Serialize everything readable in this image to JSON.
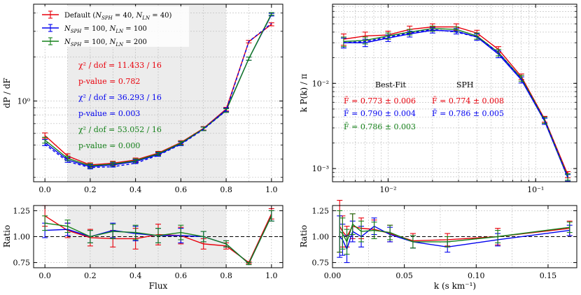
{
  "colors": {
    "red": "#e8000b",
    "blue": "#0000ee",
    "green": "#15801a",
    "shade": "#ececec"
  },
  "chart_data": [
    {
      "id": "flux-pdf",
      "type": "line",
      "xlabel": "",
      "ylabel": "dP / dF",
      "yscale": "log",
      "ylim": [
        0.28,
        4.6
      ],
      "xlim": [
        -0.05,
        1.05
      ],
      "xticks": [
        0.0,
        0.2,
        0.4,
        0.6,
        0.8,
        1.0
      ],
      "xtick_labels": [
        "0.0",
        "0.2",
        "0.4",
        "0.6",
        "0.8",
        "1.0"
      ],
      "yticks": [
        1.0
      ],
      "ytick_labels": [
        "10⁰"
      ],
      "shaded_x": [
        0.1,
        0.8
      ],
      "x": [
        0.0,
        0.1,
        0.2,
        0.3,
        0.4,
        0.5,
        0.6,
        0.7,
        0.8,
        0.9,
        1.0
      ],
      "series": [
        {
          "name": "Default (N_SPH = 40, N_LN = 40)",
          "color": "red",
          "dash": false,
          "values": [
            0.58,
            0.42,
            0.365,
            0.375,
            0.395,
            0.44,
            0.52,
            0.65,
            0.88,
            2.55,
            3.35
          ],
          "errors": [
            0.025,
            0.015,
            0.012,
            0.012,
            0.012,
            0.012,
            0.015,
            0.018,
            0.025,
            0.05,
            0.08
          ]
        },
        {
          "name": "N_SPH = 100, N_LN = 100",
          "color": "blue",
          "dash": false,
          "values": [
            0.52,
            0.395,
            0.355,
            0.365,
            0.385,
            0.43,
            0.51,
            0.645,
            0.87,
            1.95,
            3.9
          ],
          "errors": [
            0.025,
            0.015,
            0.012,
            0.012,
            0.012,
            0.012,
            0.015,
            0.018,
            0.025,
            0.05,
            0.08
          ]
        },
        {
          "name": "N_SPH = 100, N_LN = 200",
          "color": "green",
          "dash": false,
          "values": [
            0.54,
            0.405,
            0.36,
            0.37,
            0.39,
            0.435,
            0.515,
            0.645,
            0.86,
            1.95,
            3.95
          ],
          "errors": [
            0.025,
            0.015,
            0.012,
            0.012,
            0.012,
            0.012,
            0.015,
            0.018,
            0.025,
            0.05,
            0.08
          ]
        },
        {
          "name": "SPH",
          "color": "blue",
          "dash": true,
          "values": [
            0.505,
            0.385,
            0.35,
            0.355,
            0.375,
            0.425,
            0.505,
            0.64,
            0.86,
            2.55,
            3.4
          ],
          "errors": [
            0,
            0,
            0,
            0,
            0,
            0,
            0,
            0,
            0,
            0,
            0
          ]
        }
      ],
      "legend": {
        "placement": "top-left",
        "entries": [
          {
            "color": "red",
            "pre": "Default (",
            "n1": "N",
            "s1": "SPH",
            "mid": " = 40, ",
            "n2": "N",
            "s2": "LN",
            "post": " = 40)"
          },
          {
            "color": "blue",
            "pre": "",
            "n1": "N",
            "s1": "SPH",
            "mid": " = 100, ",
            "n2": "N",
            "s2": "LN",
            "post": " = 100"
          },
          {
            "color": "green",
            "pre": "",
            "n1": "N",
            "s1": "SPH",
            "mid": " = 100, ",
            "n2": "N",
            "s2": "LN",
            "post": " = 200"
          }
        ]
      },
      "annotations": [
        {
          "color": "red",
          "chi": "χ² / dof = 11.433 / 16",
          "p": "p-value = 0.782"
        },
        {
          "color": "blue",
          "chi": "χ² / dof = 36.293 / 16",
          "p": "p-value = 0.003"
        },
        {
          "color": "green",
          "chi": "χ² / dof = 53.052 / 16",
          "p": "p-value = 0.000"
        }
      ]
    },
    {
      "id": "power-spectrum",
      "type": "line",
      "xscale": "log",
      "yscale": "log",
      "xlabel": "",
      "ylabel": "k P(k) / π",
      "xlim": [
        0.0042,
        0.19
      ],
      "ylim": [
        0.0007,
        0.085
      ],
      "xticks": [
        0.01,
        0.1
      ],
      "xtick_labels": [
        "10⁻²",
        "10⁻¹"
      ],
      "yticks": [
        0.001,
        0.01
      ],
      "ytick_labels": [
        "10⁻³",
        "10⁻²"
      ],
      "x": [
        0.005,
        0.007,
        0.01,
        0.014,
        0.02,
        0.029,
        0.04,
        0.056,
        0.08,
        0.115,
        0.165
      ],
      "series": [
        {
          "name": "Default",
          "color": "red",
          "dash": false,
          "values": [
            0.033,
            0.036,
            0.037,
            0.043,
            0.046,
            0.046,
            0.039,
            0.025,
            0.012,
            0.0038,
            0.00085
          ],
          "errors": [
            0.005,
            0.004,
            0.004,
            0.004,
            0.004,
            0.004,
            0.003,
            0.002,
            0.0009,
            0.0003,
            7e-05
          ]
        },
        {
          "name": "N_SPH=100, N_LN=100",
          "color": "blue",
          "dash": false,
          "values": [
            0.03,
            0.03,
            0.034,
            0.038,
            0.042,
            0.041,
            0.035,
            0.022,
            0.011,
            0.0036,
            0.00078
          ],
          "errors": [
            0.004,
            0.003,
            0.003,
            0.003,
            0.003,
            0.003,
            0.003,
            0.002,
            0.0009,
            0.0003,
            7e-05
          ]
        },
        {
          "name": "N_SPH=100, N_LN=200",
          "color": "green",
          "dash": false,
          "values": [
            0.031,
            0.032,
            0.036,
            0.04,
            0.044,
            0.043,
            0.036,
            0.023,
            0.0115,
            0.0037,
            0.0008
          ],
          "errors": [
            0.004,
            0.003,
            0.003,
            0.003,
            0.003,
            0.003,
            0.003,
            0.002,
            0.0009,
            0.0003,
            7e-05
          ]
        },
        {
          "name": "SPH",
          "color": "blue",
          "dash": true,
          "values": [
            0.03,
            0.031,
            0.035,
            0.039,
            0.043,
            0.04,
            0.035,
            0.023,
            0.0112,
            0.0037,
            0.0008
          ],
          "errors": [
            0,
            0,
            0,
            0,
            0,
            0,
            0,
            0,
            0,
            0,
            0
          ]
        }
      ],
      "table": {
        "headers": [
          "Best-Fit",
          "SPH"
        ],
        "rows": [
          {
            "color": "red",
            "cells": [
              "F̄ = 0.773 ± 0.006",
              "F̄ = 0.774 ± 0.008"
            ]
          },
          {
            "color": "blue",
            "cells": [
              "F̄ = 0.790 ± 0.004",
              "F̄ = 0.786 ± 0.005"
            ]
          },
          {
            "color": "green",
            "cells": [
              "F̄ = 0.786 ± 0.003",
              ""
            ]
          }
        ]
      }
    },
    {
      "id": "flux-ratio",
      "type": "line",
      "xlabel": "Flux",
      "ylabel": "Ratio",
      "xlim": [
        -0.05,
        1.05
      ],
      "ylim": [
        0.7,
        1.3
      ],
      "xticks": [
        0.0,
        0.2,
        0.4,
        0.6,
        0.8,
        1.0
      ],
      "xtick_labels": [
        "0.0",
        "0.2",
        "0.4",
        "0.6",
        "0.8",
        "1.0"
      ],
      "yticks": [
        0.75,
        1.0,
        1.25
      ],
      "ytick_labels": [
        "0.75",
        "1.00",
        "1.25"
      ],
      "shaded_x": [
        0.1,
        0.8
      ],
      "reference_line": 1.0,
      "x": [
        0.0,
        0.1,
        0.2,
        0.3,
        0.4,
        0.5,
        0.6,
        0.7,
        0.8,
        0.9,
        1.0
      ],
      "series": [
        {
          "name": "Default",
          "color": "red",
          "values": [
            1.2,
            1.06,
            0.99,
            0.98,
            0.98,
            1.02,
            1.01,
            0.93,
            0.91,
            0.75,
            1.22
          ],
          "errors": [
            0.1,
            0.07,
            0.08,
            0.08,
            0.1,
            0.1,
            0.08,
            0.05,
            0.03,
            0.01,
            0.05
          ]
        },
        {
          "name": "N_SPH=100, N_LN=100",
          "color": "blue",
          "values": [
            1.06,
            1.07,
            1.0,
            1.06,
            1.03,
            1.01,
            1.01,
            1.0,
            0.93,
            0.74,
            1.2
          ],
          "errors": [
            0.07,
            0.06,
            0.06,
            0.07,
            0.07,
            0.07,
            0.07,
            0.05,
            0.03,
            0.01,
            0.05
          ]
        },
        {
          "name": "N_SPH=100, N_LN=200",
          "color": "green",
          "values": [
            1.13,
            1.1,
            1.0,
            1.05,
            1.04,
            1.01,
            1.04,
            1.0,
            0.93,
            0.74,
            1.2
          ],
          "errors": [
            0.07,
            0.06,
            0.06,
            0.07,
            0.07,
            0.07,
            0.07,
            0.05,
            0.03,
            0.01,
            0.05
          ]
        }
      ]
    },
    {
      "id": "k-ratio",
      "type": "line",
      "xlabel": "k (s km⁻¹)",
      "ylabel": "Ratio",
      "xlim": [
        0.0,
        0.17
      ],
      "ylim": [
        0.7,
        1.3
      ],
      "xticks": [
        0.0,
        0.05,
        0.1,
        0.15
      ],
      "xtick_labels": [
        "0.00",
        "0.05",
        "0.10",
        "0.15"
      ],
      "yticks": [
        0.75,
        1.0,
        1.25
      ],
      "ytick_labels": [
        "0.75",
        "1.00",
        "1.25"
      ],
      "reference_line": 1.0,
      "x": [
        0.005,
        0.007,
        0.01,
        0.014,
        0.02,
        0.029,
        0.04,
        0.056,
        0.08,
        0.115,
        0.165
      ],
      "series": [
        {
          "name": "Default",
          "color": "red",
          "values": [
            1.1,
            1.05,
            1.0,
            1.1,
            1.08,
            1.07,
            1.03,
            0.96,
            0.97,
            1.0,
            1.08
          ],
          "errors": [
            0.25,
            0.15,
            0.1,
            0.12,
            0.1,
            0.09,
            0.08,
            0.07,
            0.06,
            0.08,
            0.07
          ]
        },
        {
          "name": "N_SPH=100, N_LN=100",
          "color": "blue",
          "values": [
            1.0,
            0.97,
            0.88,
            1.05,
            1.0,
            1.1,
            1.02,
            0.95,
            0.9,
            0.97,
            1.06
          ],
          "errors": [
            0.2,
            0.15,
            0.13,
            0.1,
            0.1,
            0.08,
            0.07,
            0.06,
            0.05,
            0.06,
            0.05
          ]
        },
        {
          "name": "N_SPH=100, N_LN=200",
          "color": "green",
          "values": [
            1.05,
            1.03,
            0.95,
            1.12,
            1.05,
            1.06,
            1.04,
            0.95,
            0.95,
            1.0,
            1.09
          ],
          "errors": [
            0.2,
            0.15,
            0.12,
            0.1,
            0.1,
            0.08,
            0.07,
            0.06,
            0.05,
            0.06,
            0.05
          ]
        }
      ]
    }
  ]
}
